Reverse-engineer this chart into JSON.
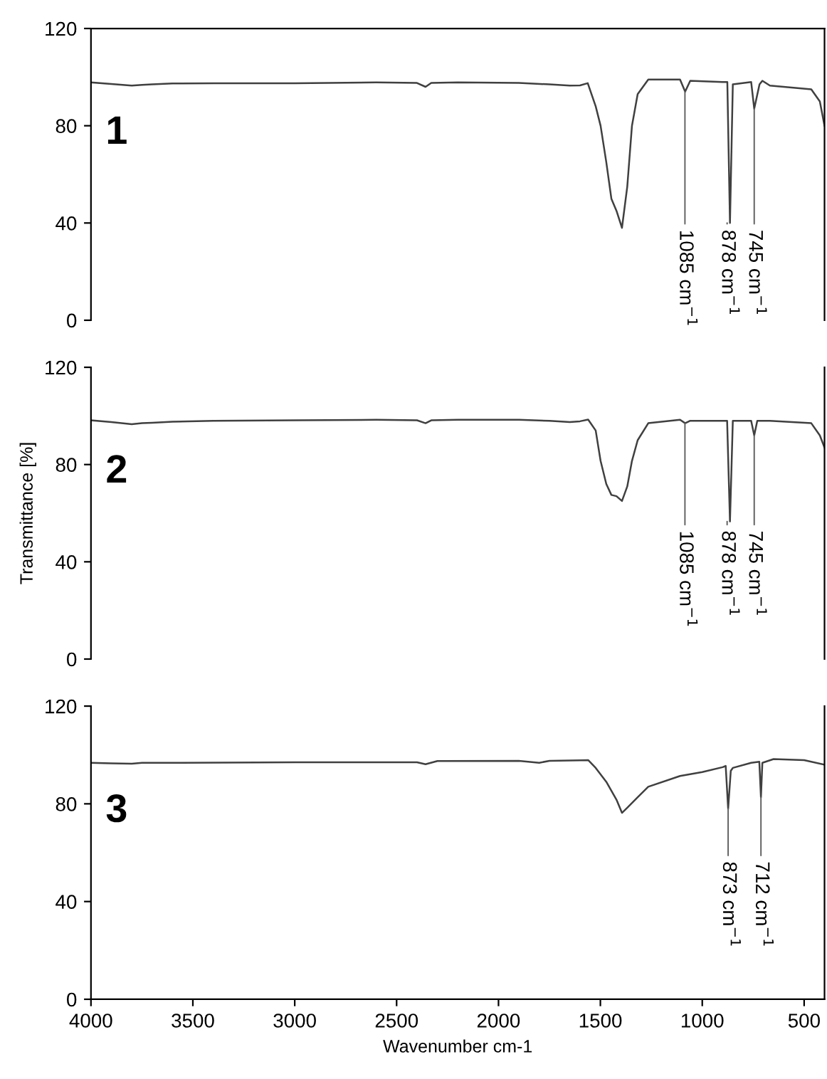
{
  "chart_data": [
    {
      "type": "line",
      "xlim": [
        4000,
        400
      ],
      "ylim": [
        0,
        120
      ],
      "yticks": [
        0,
        40,
        80,
        120
      ],
      "tick_labels": "y",
      "grid": false,
      "legend": false,
      "series": [
        {
          "color": "#404040",
          "x": [
            4000,
            3900,
            3800,
            3749,
            3700,
            3600,
            3400,
            3000,
            2600,
            2400,
            2358,
            2330,
            2200,
            1900,
            1750,
            1650,
            1600,
            1562,
            1523,
            1499,
            1471,
            1446,
            1421,
            1394,
            1368,
            1345,
            1317,
            1265,
            1109,
            1084,
            1059,
            900,
            877,
            864,
            850,
            760,
            745,
            719,
            705,
            668,
            465,
            423,
            400
          ],
          "values": [
            97.8,
            97.2,
            96.5,
            96.8,
            97.0,
            97.4,
            97.5,
            97.5,
            97.8,
            97.6,
            96.0,
            97.6,
            97.8,
            97.6,
            97.0,
            96.5,
            96.6,
            97.5,
            88,
            80,
            65,
            50,
            45,
            38,
            55,
            80,
            93,
            99,
            99,
            94,
            98.5,
            98,
            98,
            40,
            97,
            98,
            87,
            97,
            98.5,
            96.5,
            95,
            90,
            80
          ]
        }
      ],
      "annotations": [
        "1",
        {
          "text": "1085 cm$^{−1}$",
          "x": 1085,
          "y": 94
        },
        {
          "text": "878 cm$^{−1}$",
          "x": 878,
          "y": 40
        },
        {
          "text": "745 cm$^{−1}$",
          "x": 745,
          "y": 87
        }
      ]
    },
    {
      "type": "line",
      "xlim": [
        4000,
        400
      ],
      "ylim": [
        0,
        120
      ],
      "yticks": [
        0,
        40,
        80,
        120
      ],
      "tick_labels": "y",
      "grid": false,
      "legend": false,
      "ylabel": "Transmittance [%]",
      "series": [
        {
          "color": "#404040",
          "x": [
            4000,
            3900,
            3800,
            3749,
            3700,
            3600,
            3400,
            3000,
            2600,
            2400,
            2358,
            2330,
            2200,
            1900,
            1750,
            1650,
            1600,
            1560,
            1523,
            1499,
            1471,
            1446,
            1421,
            1394,
            1368,
            1345,
            1317,
            1265,
            1109,
            1084,
            1059,
            900,
            878,
            864,
            850,
            760,
            745,
            730,
            668,
            465,
            423,
            400
          ],
          "values": [
            98.2,
            97.5,
            96.6,
            97.0,
            97.2,
            97.6,
            98.0,
            98.2,
            98.4,
            98.2,
            97.0,
            98.2,
            98.4,
            98.4,
            98.0,
            97.5,
            97.8,
            98.5,
            94,
            81.5,
            72,
            67.5,
            67,
            65,
            71,
            81.5,
            90,
            97,
            98.4,
            97,
            98,
            98,
            98,
            56.6,
            98,
            98,
            92,
            98,
            98,
            97,
            92,
            87
          ]
        }
      ],
      "annotations": [
        "2",
        {
          "text": "1085 cm$^{−1}$",
          "x": 1085,
          "y": 97
        },
        {
          "text": "878 cm$^{−1}$",
          "x": 878,
          "y": 56.6
        },
        {
          "text": "745 cm$^{−1}$",
          "x": 745,
          "y": 92
        }
      ]
    },
    {
      "type": "line",
      "xlim": [
        4000,
        400
      ],
      "ylim": [
        0,
        120
      ],
      "yticks": [
        0,
        40,
        80,
        120
      ],
      "xticks": [
        4000,
        3500,
        3000,
        2500,
        2000,
        1500,
        1000,
        500
      ],
      "grid": false,
      "legend": false,
      "xlabel": "Wavenumber cm-1",
      "series": [
        {
          "color": "#404040",
          "x": [
            4000,
            3900,
            3800,
            3749,
            3600,
            3000,
            2600,
            2400,
            2358,
            2300,
            1900,
            1800,
            1750,
            1600,
            1560,
            1523,
            1471,
            1421,
            1394,
            1368,
            1317,
            1265,
            1109,
            1000,
            900,
            885,
            873,
            860,
            850,
            760,
            720,
            712,
            705,
            650,
            500,
            400
          ],
          "values": [
            96.8,
            96.6,
            96.4,
            96.8,
            96.8,
            97.0,
            97.0,
            97.0,
            96.2,
            97.5,
            97.6,
            96.8,
            97.6,
            97.8,
            97.9,
            94.7,
            89,
            81.7,
            76.3,
            78.4,
            82.7,
            87,
            91.4,
            93,
            95,
            95.5,
            78,
            93.5,
            94.7,
            96.8,
            97.2,
            82.7,
            96.8,
            98.3,
            97.9,
            96
          ]
        }
      ],
      "annotations": [
        "3",
        {
          "text": "873 cm$^{−1}$",
          "x": 873,
          "y": 78
        },
        {
          "text": "712 cm$^{−1}$",
          "x": 712,
          "y": 82.7
        }
      ]
    }
  ]
}
